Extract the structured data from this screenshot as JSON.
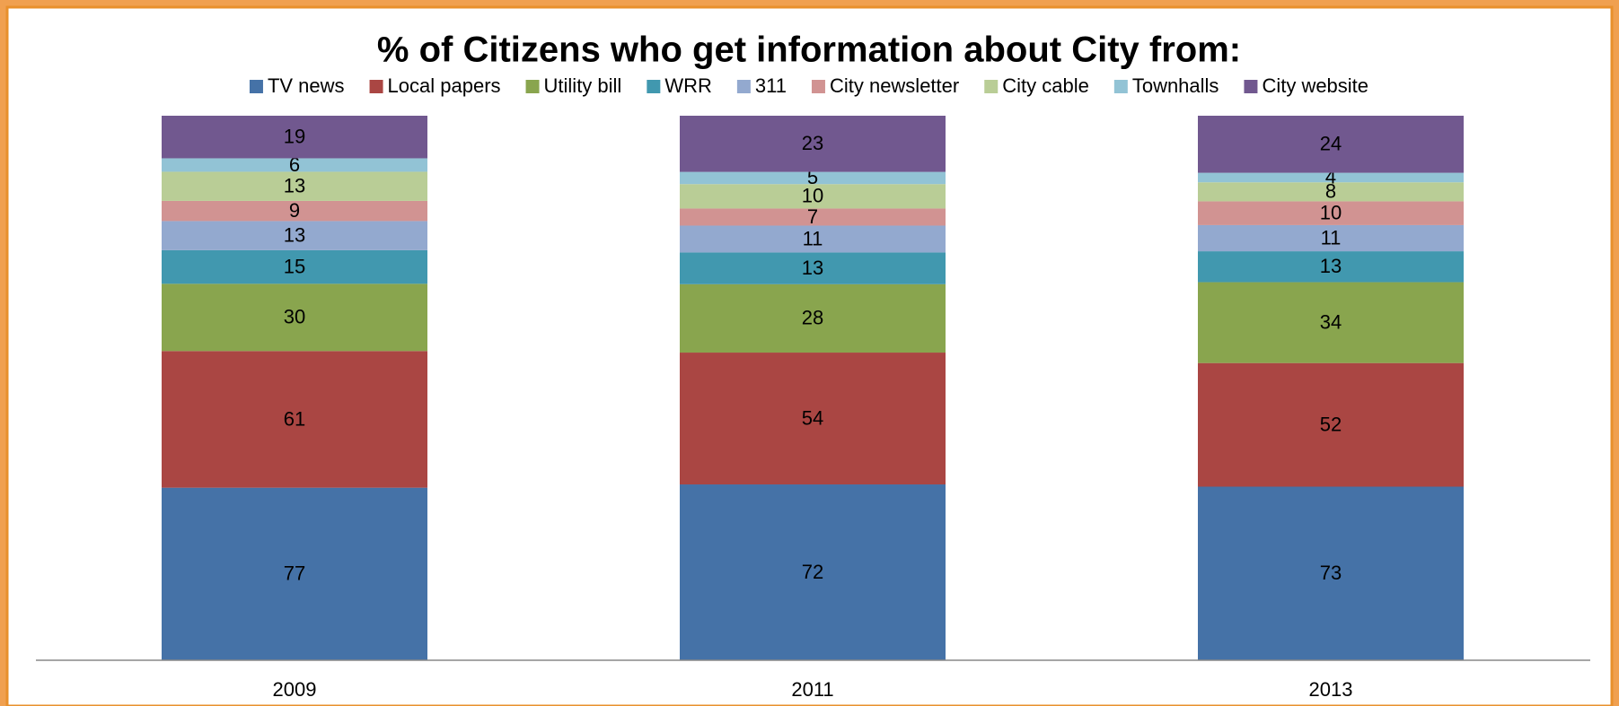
{
  "chart_data": {
    "type": "bar",
    "stack": "percent",
    "title": "% of Citizens who get information about City from:",
    "categories": [
      "2009",
      "2011",
      "2013"
    ],
    "series": [
      {
        "name": "TV news",
        "color": "#4572a7",
        "values": [
          77,
          72,
          73
        ]
      },
      {
        "name": "Local papers",
        "color": "#aa4643",
        "values": [
          61,
          54,
          52
        ]
      },
      {
        "name": "Utility bill",
        "color": "#89a54e",
        "values": [
          30,
          28,
          34
        ]
      },
      {
        "name": "WRR",
        "color": "#4198af",
        "values": [
          15,
          13,
          13
        ]
      },
      {
        "name": "311",
        "color": "#93a9cf",
        "values": [
          13,
          11,
          11
        ]
      },
      {
        "name": "City newsletter",
        "color": "#d19392",
        "values": [
          9,
          7,
          10
        ]
      },
      {
        "name": "City cable",
        "color": "#b9cd96",
        "values": [
          13,
          10,
          8
        ]
      },
      {
        "name": "Townhalls",
        "color": "#92c3d5",
        "values": [
          6,
          5,
          4
        ]
      },
      {
        "name": "City website",
        "color": "#71588f",
        "values": [
          19,
          23,
          24
        ]
      }
    ],
    "legend": "top"
  }
}
